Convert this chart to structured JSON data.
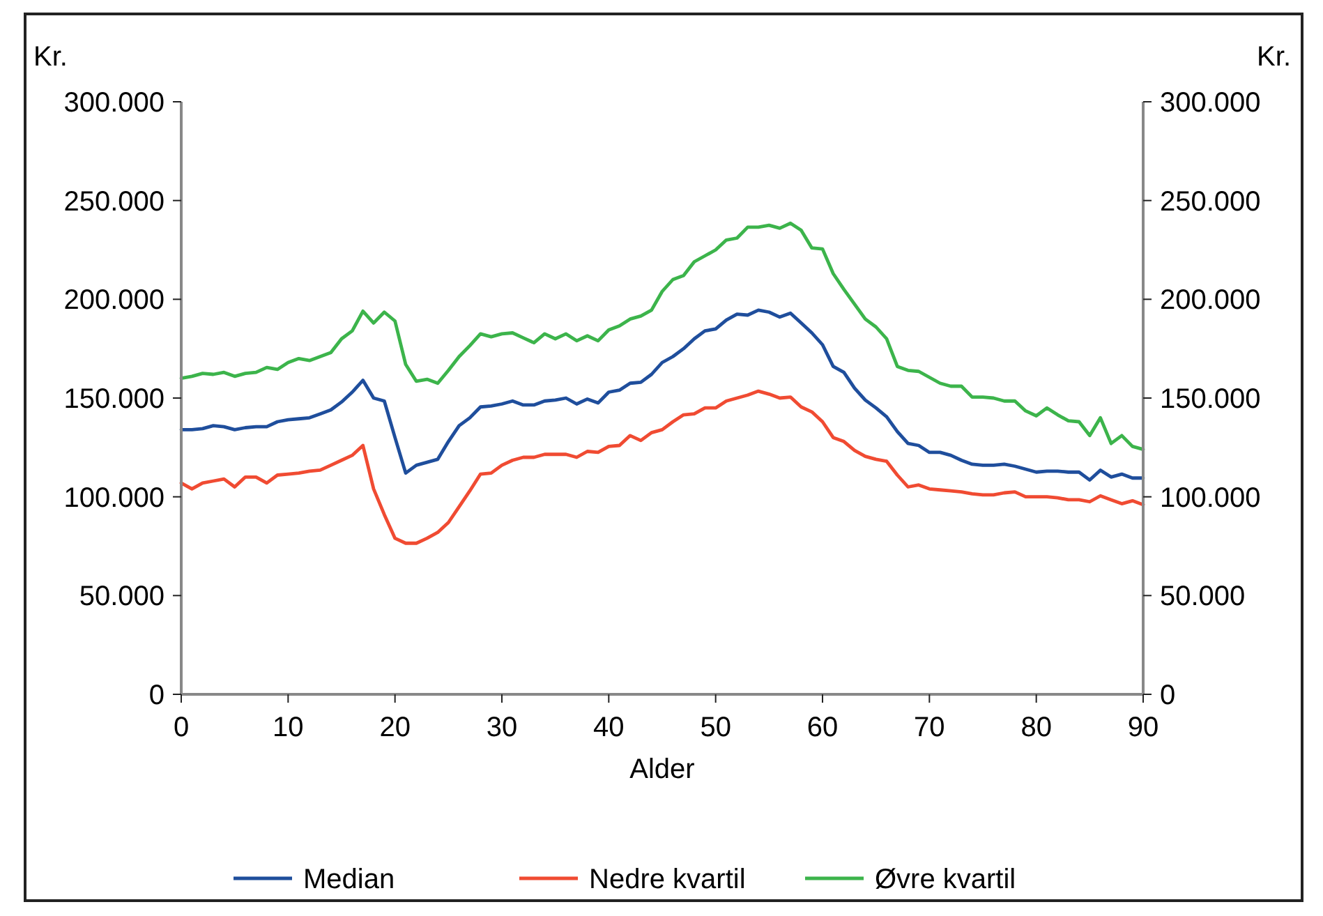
{
  "chart_data": {
    "type": "line",
    "xlabel": "Alder",
    "ylabel": "Kr.",
    "y2label": "Kr.",
    "xlim": [
      0,
      90
    ],
    "xticks": [
      0,
      10,
      20,
      30,
      40,
      50,
      60,
      70,
      80,
      90
    ],
    "ylim": [
      0,
      300000
    ],
    "yticks": [
      {
        "value": 0,
        "label": "0"
      },
      {
        "value": 50000,
        "label": "50.000"
      },
      {
        "value": 100000,
        "label": "100.000"
      },
      {
        "value": 150000,
        "label": "150.000"
      },
      {
        "value": 200000,
        "label": "200.000"
      },
      {
        "value": 250000,
        "label": "250.000"
      },
      {
        "value": 300000,
        "label": "300.000"
      }
    ],
    "y2lim": [
      0,
      300000
    ],
    "y2ticks": [
      {
        "value": 0,
        "label": "0"
      },
      {
        "value": 50000,
        "label": "50.000"
      },
      {
        "value": 100000,
        "label": "100.000"
      },
      {
        "value": 150000,
        "label": "150.000"
      },
      {
        "value": 200000,
        "label": "200.000"
      },
      {
        "value": 250000,
        "label": "250.000"
      },
      {
        "value": 300000,
        "label": "300.000"
      }
    ],
    "x": [
      0,
      1,
      2,
      3,
      4,
      5,
      6,
      7,
      8,
      9,
      10,
      11,
      12,
      13,
      14,
      15,
      16,
      17,
      18,
      19,
      20,
      21,
      22,
      23,
      24,
      25,
      26,
      27,
      28,
      29,
      30,
      31,
      32,
      33,
      34,
      35,
      36,
      37,
      38,
      39,
      40,
      41,
      42,
      43,
      44,
      45,
      46,
      47,
      48,
      49,
      50,
      51,
      52,
      53,
      54,
      55,
      56,
      57,
      58,
      59,
      60,
      61,
      62,
      63,
      64,
      65,
      66,
      67,
      68,
      69,
      70,
      71,
      72,
      73,
      74,
      75,
      76,
      77,
      78,
      79,
      80,
      81,
      82,
      83,
      84,
      85,
      86,
      87,
      88,
      89,
      90
    ],
    "grid": false,
    "legend": "bottom",
    "marker": "none",
    "line_style": "solid",
    "series": [
      {
        "name": "Median",
        "color": "#1f4e9c",
        "values": [
          134000,
          134000,
          134500,
          136000,
          135500,
          134000,
          135000,
          135500,
          135500,
          138000,
          139000,
          139500,
          140000,
          142000,
          144000,
          148000,
          153000,
          159000,
          150000,
          148500,
          130000,
          112000,
          116000,
          117500,
          119000,
          128000,
          136000,
          140000,
          145500,
          146000,
          147000,
          148500,
          146500,
          146500,
          148500,
          149000,
          150000,
          147000,
          149500,
          147500,
          153000,
          154000,
          157500,
          158000,
          162000,
          168000,
          171000,
          175000,
          180000,
          184000,
          185000,
          189500,
          192500,
          192000,
          194500,
          193500,
          191000,
          193000,
          188000,
          183000,
          177000,
          166000,
          163000,
          155000,
          149000,
          145000,
          140500,
          133000,
          127000,
          126000,
          122500,
          122500,
          121000,
          118500,
          116500,
          116000,
          116000,
          116500,
          115500,
          114000,
          112500,
          113000,
          113000,
          112500,
          112500,
          108500,
          113500,
          110000,
          111500,
          109500,
          109500
        ]
      },
      {
        "name": "Nedre kvartil",
        "color": "#f04b32",
        "values": [
          107000,
          104000,
          107000,
          108000,
          109000,
          105000,
          110000,
          110000,
          107000,
          111000,
          111500,
          112000,
          113000,
          113500,
          116000,
          118500,
          121000,
          126000,
          104000,
          91000,
          79000,
          76500,
          76500,
          79000,
          82000,
          87000,
          95000,
          103000,
          111500,
          112000,
          116000,
          118500,
          120000,
          120000,
          121500,
          121500,
          121500,
          120000,
          123000,
          122500,
          125500,
          126000,
          131000,
          128500,
          132500,
          134000,
          138000,
          141500,
          142000,
          145000,
          145000,
          148500,
          150000,
          151500,
          153500,
          152000,
          150000,
          150500,
          145500,
          143000,
          138000,
          130000,
          128000,
          123500,
          120500,
          119000,
          118000,
          111000,
          105000,
          106000,
          104000,
          103500,
          103000,
          102500,
          101500,
          101000,
          101000,
          102000,
          102500,
          100000,
          100000,
          100000,
          99500,
          98500,
          98500,
          97500,
          100500,
          98500,
          96500,
          98000,
          96000
        ]
      },
      {
        "name": "Øvre kvartil",
        "color": "#3cb44b",
        "values": [
          160000,
          161000,
          162500,
          162000,
          163000,
          161000,
          162500,
          163000,
          165500,
          164500,
          168000,
          170000,
          169000,
          171000,
          173000,
          180000,
          184000,
          194000,
          188000,
          193500,
          189000,
          167000,
          158500,
          159500,
          157500,
          164000,
          171000,
          176500,
          182500,
          181000,
          182500,
          183000,
          180500,
          178000,
          182500,
          180000,
          182500,
          179000,
          181500,
          179000,
          184500,
          186500,
          190000,
          191500,
          194500,
          204000,
          210000,
          212000,
          219000,
          222000,
          225000,
          230000,
          231000,
          236500,
          236500,
          237500,
          236000,
          238500,
          235000,
          226000,
          225500,
          213000,
          205000,
          197500,
          190000,
          186000,
          180000,
          166000,
          164000,
          163500,
          160500,
          157500,
          156000,
          156000,
          150500,
          150500,
          150000,
          148500,
          148500,
          143500,
          141000,
          145000,
          141500,
          138500,
          138000,
          131000,
          140000,
          127000,
          131000,
          125500,
          124000
        ]
      }
    ]
  }
}
